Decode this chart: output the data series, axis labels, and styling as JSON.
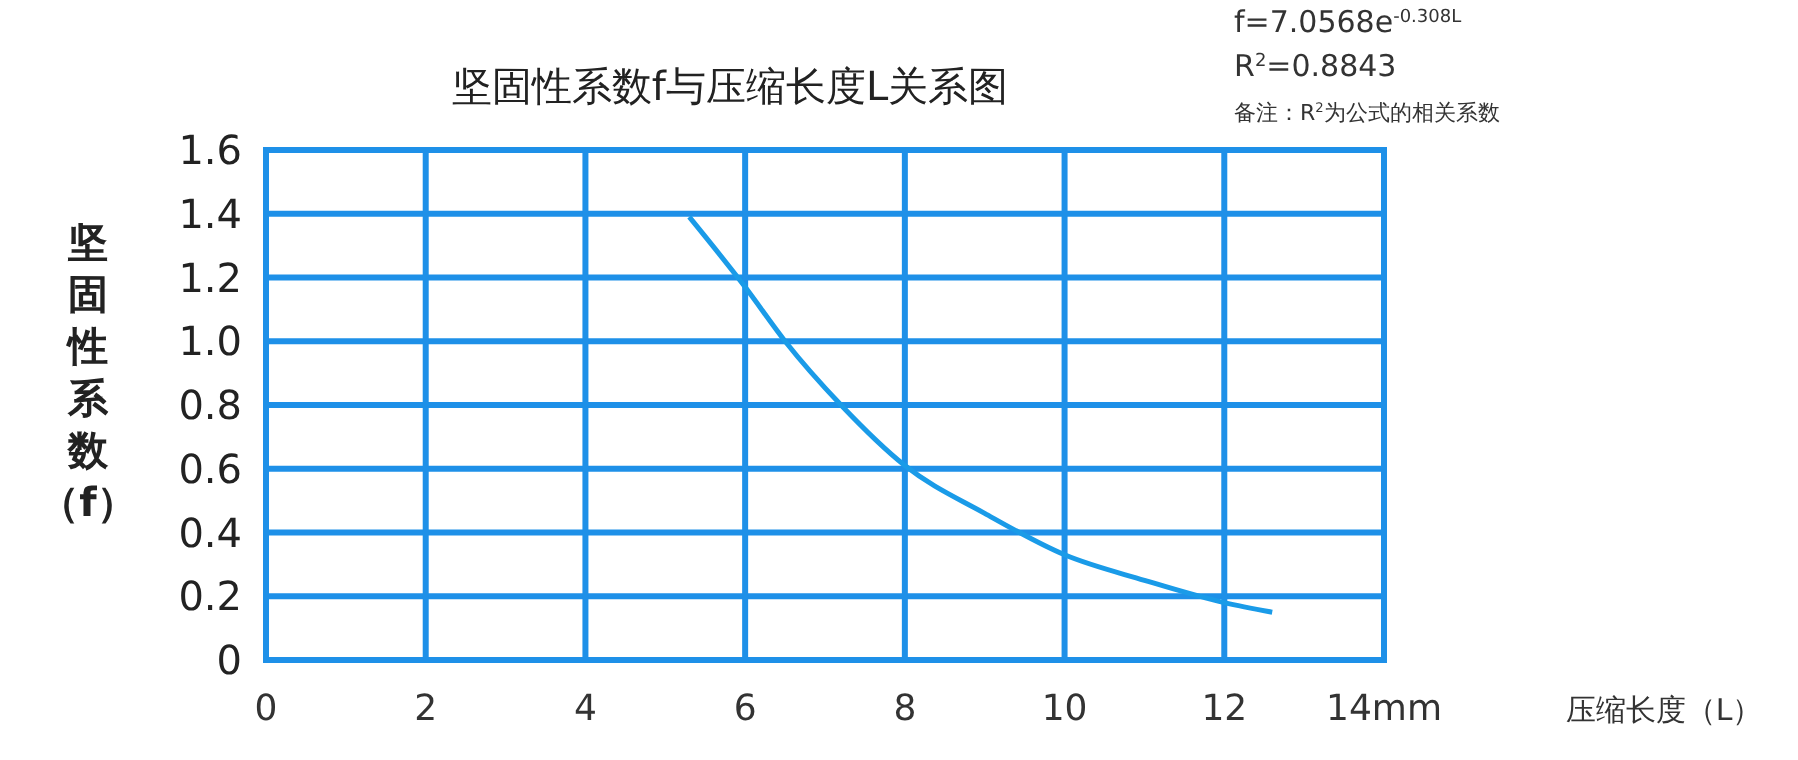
{
  "chart_data": {
    "type": "line",
    "title": "坚固性系数f与压缩长度L关系图",
    "xlabel": "压缩长度（L）",
    "ylabel": "坚固性系数（f）",
    "annotations": [
      "f=7.0568e$^{-0.308L}$",
      "R$^{2}$=0.8843",
      "备注：R$^{2}$为公式的相关系数"
    ],
    "series": [
      {
        "color": "#1a9be8",
        "x": [
          5.3,
          6,
          6.5,
          7.2,
          8,
          9,
          10,
          11,
          12,
          12.6
        ],
        "values": [
          1.39,
          1.17,
          1.0,
          0.8,
          0.61,
          0.46,
          0.33,
          0.25,
          0.18,
          0.15
        ]
      }
    ],
    "xlim": [
      0,
      14
    ],
    "xticks": [
      0,
      2,
      4,
      6,
      8,
      10,
      12,
      {
        "value": 14,
        "label": "14mm"
      }
    ],
    "ylim": [
      0,
      1.6
    ],
    "yticks": [
      0,
      0.2,
      0.4,
      0.6,
      0.8,
      {
        "value": 1,
        "label": "1.0"
      },
      1.2,
      1.4,
      1.6
    ],
    "grid": true,
    "line_style": "solid"
  }
}
